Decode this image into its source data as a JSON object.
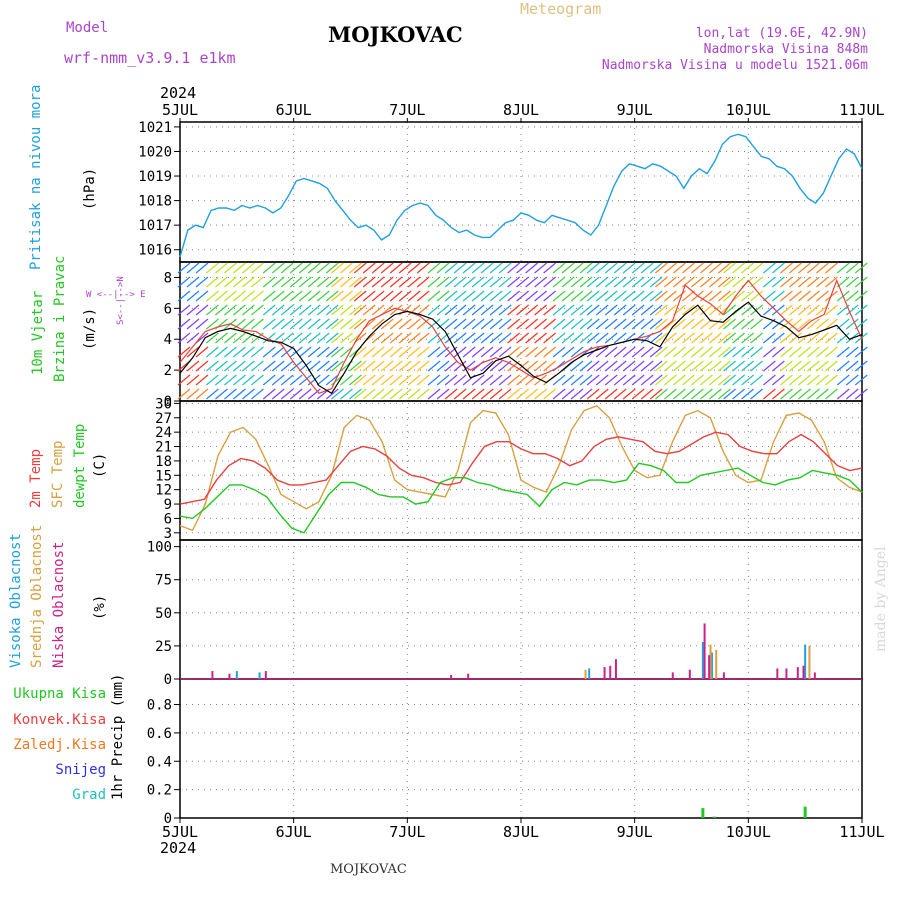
{
  "header": {
    "model_label": "Model",
    "model_name": "wrf-nmm_v3.9.1 e1km",
    "title": "MOJKOVAC",
    "meteogram": "Meteogram",
    "lonlat": "lon,lat (19.6E, 42.9N)",
    "elevation": "Nadmorska Visina 848m",
    "model_elevation": "Nadmorska Visina u modelu 1521.06m",
    "year_top": "2024",
    "year_bottom": "2024",
    "footer_station": "MOJKOVAC",
    "watermark": "made by Angel"
  },
  "colors": {
    "pressure": "#1fa0e0",
    "temp2m": "#e84040",
    "sfc": "#d8a040",
    "dew": "#22c822",
    "high_cloud": "#1fa0e0",
    "mid_cloud": "#d8a040",
    "low_cloud": "#cc2288",
    "total_precip": "#22c822",
    "conv_precip": "#e84040",
    "frozen_precip": "#f07820",
    "snow": "#3030e0",
    "hail": "#20c0c0",
    "wind_speed": "#000000",
    "wind_gust": "#e84040",
    "purple_text": "#aa44cc"
  },
  "x_axis": {
    "tick_labels": [
      "5JUL",
      "6JUL",
      "7JUL",
      "8JUL",
      "9JUL",
      "10JUL",
      "11JUL"
    ]
  },
  "panel_labels": {
    "pressure": {
      "name": "Pritisak na nivou mora",
      "unit": "(hPa)"
    },
    "wind": {
      "line1": "10m Vjetar",
      "line2": "Brzina i Pravac",
      "unit": "(m/s)",
      "compass": "W <--|--> E",
      "compass_v": "S<--|-->N"
    },
    "temp": {
      "l1": "2m Temp",
      "l2": "SFC Temp",
      "l3": "dewpt Temp",
      "unit": "(C)"
    },
    "cloud": {
      "l1": "Visoka Oblacnost",
      "l2": "Srednja Oblacnost",
      "l3": "Niska Oblacnost",
      "unit": "(%)"
    },
    "precip": {
      "l1": "Ukupna Kisa",
      "l2": "Konvek.Kisa",
      "l3": "Zaledj.Kisa",
      "l4": "Snijeg",
      "l5": "Grad",
      "unit": "1hr Precip (mm)"
    }
  },
  "chart_data": [
    {
      "type": "line",
      "panel": "pressure",
      "ylim": [
        1015.5,
        1021.2
      ],
      "yticks": [
        1016,
        1017,
        1018,
        1019,
        1020,
        1021
      ],
      "series": [
        {
          "values": [
            1015.7,
            1016.8,
            1017.0,
            1016.9,
            1017.6,
            1017.7,
            1017.7,
            1017.6,
            1017.8,
            1017.7,
            1017.8,
            1017.7,
            1017.5,
            1017.7,
            1018.2,
            1018.8,
            1018.9,
            1018.8,
            1018.7,
            1018.5,
            1018.0,
            1017.6,
            1017.2,
            1016.9,
            1017.0,
            1016.8,
            1016.4,
            1016.6,
            1017.2,
            1017.6,
            1017.8,
            1017.9,
            1017.8,
            1017.4,
            1017.2,
            1016.9,
            1016.7,
            1016.8,
            1016.6,
            1016.5,
            1016.5,
            1016.8,
            1017.1,
            1017.2,
            1017.5,
            1017.4,
            1017.2,
            1017.1,
            1017.4,
            1017.3,
            1017.2,
            1017.1,
            1016.8,
            1016.6,
            1017.0,
            1017.8,
            1018.6,
            1019.2,
            1019.5,
            1019.4,
            1019.3,
            1019.5,
            1019.4,
            1019.2,
            1019.0,
            1018.5,
            1019.0,
            1019.3,
            1019.1,
            1019.6,
            1020.3,
            1020.6,
            1020.7,
            1020.6,
            1020.2,
            1019.8,
            1019.7,
            1019.4,
            1019.3,
            1019.0,
            1018.5,
            1018.1,
            1017.9,
            1018.3,
            1019.0,
            1019.7,
            1020.1,
            1019.9,
            1019.3
          ]
        }
      ]
    },
    {
      "type": "line",
      "panel": "wind",
      "ylim": [
        0,
        9
      ],
      "yticks": [
        0,
        2,
        4,
        6,
        8
      ],
      "series": [
        {
          "values": [
            1.8,
            2.8,
            4.1,
            4.5,
            4.7,
            4.5,
            4.2,
            3.9,
            3.8,
            3.4,
            2.3,
            1.0,
            0.5,
            1.8,
            3.2,
            4.2,
            5.0,
            5.6,
            5.8,
            5.6,
            5.3,
            4.5,
            3.0,
            1.5,
            1.8,
            2.6,
            2.9,
            2.3,
            1.6,
            1.2,
            1.8,
            2.5,
            3.0,
            3.3,
            3.6,
            3.8,
            4.0,
            3.9,
            3.5,
            4.8,
            5.6,
            6.2,
            5.2,
            5.1,
            5.8,
            6.4,
            5.5,
            5.2,
            4.8,
            4.1,
            4.3,
            4.6,
            4.9,
            4.0,
            4.3
          ]
        },
        {
          "values": [
            2.5,
            3.5,
            4.5,
            4.8,
            5.0,
            4.6,
            4.5,
            4.0,
            3.7,
            2.5,
            1.5,
            0.5,
            0.8,
            2.5,
            4.0,
            5.2,
            5.6,
            6.0,
            5.8,
            5.5,
            4.8,
            3.5,
            2.5,
            2.0,
            2.5,
            2.8,
            2.5,
            2.0,
            1.5,
            1.8,
            2.2,
            2.7,
            3.2,
            3.5,
            3.6,
            3.8,
            4.0,
            4.2,
            4.5,
            5.2,
            7.5,
            6.8,
            6.3,
            5.6,
            6.8,
            7.8,
            6.8,
            6.0,
            5.2,
            4.5,
            5.2,
            5.6,
            7.8,
            5.8,
            4.0
          ]
        }
      ]
    },
    {
      "type": "line",
      "panel": "temp",
      "ylim": [
        1.5,
        30.5
      ],
      "yticks": [
        3,
        6,
        9,
        12,
        15,
        18,
        21,
        24,
        27,
        30
      ],
      "series": [
        {
          "values": [
            9.0,
            9.5,
            10.0,
            14.0,
            17.0,
            18.5,
            18.0,
            16.5,
            14.0,
            13.0,
            13.0,
            13.5,
            14.0,
            17.0,
            20.0,
            21.0,
            20.5,
            19.0,
            16.5,
            15.0,
            14.5,
            13.5,
            13.0,
            13.5,
            17.5,
            21.0,
            22.0,
            22.0,
            20.5,
            19.5,
            19.5,
            18.5,
            17.0,
            18.0,
            21.0,
            22.5,
            23.0,
            22.5,
            22.0,
            20.0,
            19.5,
            20.0,
            21.5,
            23.0,
            24.0,
            23.5,
            21.0,
            20.0,
            19.5,
            19.5,
            22.0,
            23.5,
            22.0,
            19.5,
            17.0,
            16.0,
            16.5
          ]
        },
        {
          "values": [
            4.5,
            3.5,
            9.0,
            19.0,
            24.0,
            25.0,
            22.5,
            17.0,
            11.0,
            9.5,
            8.0,
            9.5,
            15.0,
            25.0,
            27.5,
            26.5,
            22.0,
            14.0,
            12.0,
            11.5,
            11.0,
            10.5,
            16.0,
            26.0,
            28.5,
            28.0,
            23.5,
            14.0,
            12.5,
            11.5,
            17.0,
            24.5,
            28.5,
            29.5,
            27.0,
            21.0,
            16.0,
            14.5,
            15.0,
            22.0,
            27.5,
            28.5,
            27.0,
            20.0,
            15.0,
            13.5,
            14.0,
            22.0,
            27.5,
            28.0,
            26.5,
            22.0,
            14.5,
            12.5,
            11.5
          ]
        },
        {
          "values": [
            6.5,
            6.0,
            8.0,
            10.5,
            13.0,
            13.0,
            12.0,
            10.5,
            7.0,
            4.0,
            3.0,
            7.0,
            11.0,
            13.5,
            13.5,
            12.5,
            11.0,
            10.5,
            10.5,
            9.0,
            9.5,
            13.5,
            14.5,
            14.5,
            13.5,
            13.0,
            12.0,
            11.5,
            11.0,
            8.5,
            12.0,
            13.5,
            13.0,
            14.0,
            14.0,
            13.5,
            14.0,
            17.5,
            17.0,
            16.0,
            13.5,
            13.5,
            15.0,
            15.5,
            16.0,
            16.5,
            15.0,
            13.5,
            13.0,
            14.0,
            14.5,
            16.0,
            15.5,
            15.0,
            14.0,
            11.5
          ]
        }
      ]
    },
    {
      "type": "bar",
      "panel": "cloud",
      "ylim": [
        0,
        105
      ],
      "yticks": [
        0,
        25,
        50,
        75,
        100
      ],
      "series": [
        {
          "values": [
            [
              5.5,
              6
            ],
            [
              5.7,
              5
            ],
            [
              8.6,
              8
            ],
            [
              9.6,
              28
            ],
            [
              9.68,
              20
            ],
            [
              10.5,
              26
            ]
          ]
        },
        {
          "values": [
            [
              8.55,
              7
            ],
            [
              9.65,
              26
            ],
            [
              9.7,
              22
            ],
            [
              10.52,
              25
            ]
          ]
        },
        {
          "values": [
            [
              5.25,
              6
            ],
            [
              5.4,
              4
            ],
            [
              5.72,
              6
            ],
            [
              7.35,
              3
            ],
            [
              7.5,
              4
            ],
            [
              8.7,
              9
            ],
            [
              8.75,
              10
            ],
            [
              8.8,
              15
            ],
            [
              9.3,
              5
            ],
            [
              9.45,
              7
            ],
            [
              9.58,
              42
            ],
            [
              9.62,
              18
            ],
            [
              9.75,
              5
            ],
            [
              10.22,
              8
            ],
            [
              10.3,
              8
            ],
            [
              10.4,
              9
            ],
            [
              10.45,
              10
            ],
            [
              10.55,
              5
            ]
          ]
        }
      ]
    },
    {
      "type": "bar",
      "panel": "precip",
      "ylim": [
        0,
        0.98
      ],
      "yticks": [
        0,
        0.2,
        0.4,
        0.6,
        0.8
      ],
      "series": [
        {
          "values": [
            [
              9.6,
              0.07
            ],
            [
              9.7,
              0.01
            ],
            [
              10.5,
              0.08
            ]
          ]
        }
      ]
    }
  ]
}
